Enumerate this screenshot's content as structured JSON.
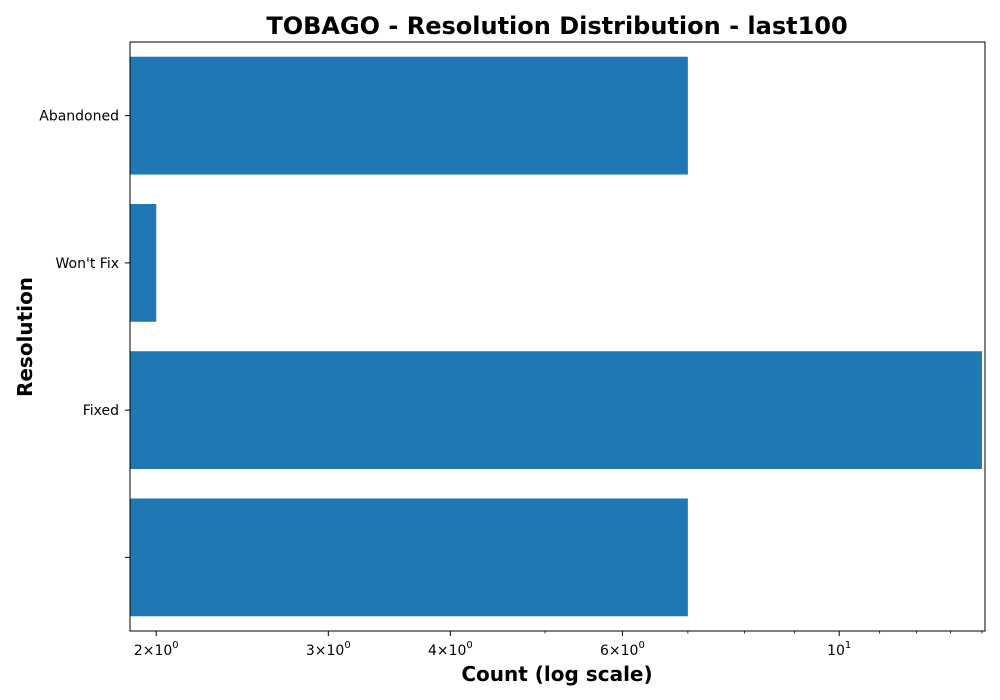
{
  "chart_data": {
    "type": "bar",
    "orientation": "horizontal",
    "title": "TOBAGO - Resolution Distribution - last100",
    "xlabel": "Count (log scale)",
    "ylabel": "Resolution",
    "x_scale": "log",
    "xlim": [
      1.88,
      14.1
    ],
    "categories": [
      "",
      "Fixed",
      "Won't Fix",
      "Abandoned"
    ],
    "values": [
      7,
      14,
      2,
      7
    ],
    "bar_color": "#1f77b4",
    "x_ticks": [
      {
        "value": 2,
        "mantissa": "2",
        "base": "10",
        "exp": "0"
      },
      {
        "value": 3,
        "mantissa": "3",
        "base": "10",
        "exp": "0"
      },
      {
        "value": 4,
        "mantissa": "4",
        "base": "10",
        "exp": "0"
      },
      {
        "value": 6,
        "mantissa": "6",
        "base": "10",
        "exp": "0"
      },
      {
        "value": 10,
        "mantissa": "",
        "base": "10",
        "exp": "1"
      }
    ],
    "grid": false,
    "legend": "none"
  }
}
